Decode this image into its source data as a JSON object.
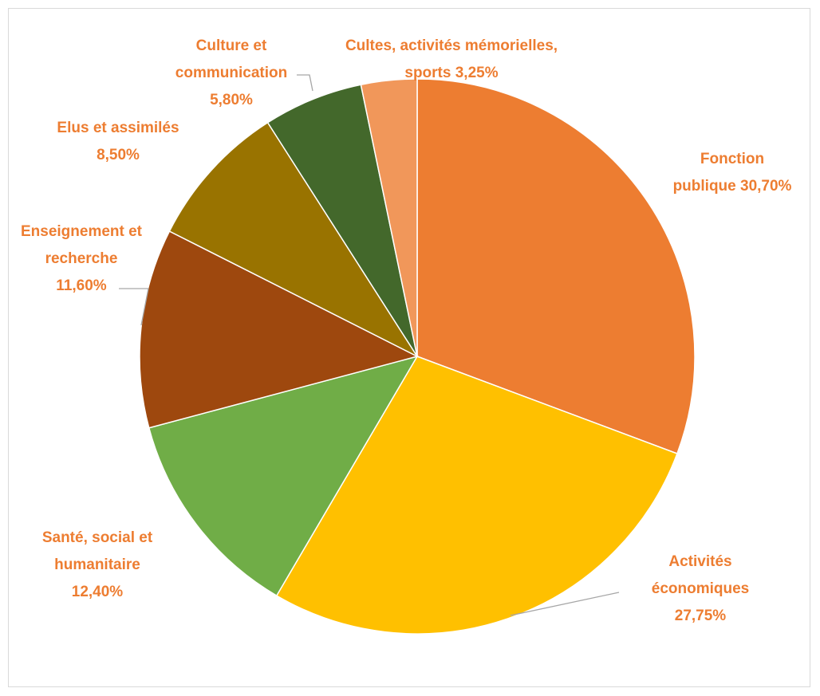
{
  "chart_data": {
    "type": "pie",
    "title": "",
    "slices": [
      {
        "name": "Fonction publique",
        "value": 30.7,
        "label_lines": [
          "Fonction",
          "publique 30,70%"
        ],
        "color": "#ED7D31"
      },
      {
        "name": "Activités économiques",
        "value": 27.75,
        "label_lines": [
          "Activités",
          "économiques",
          "27,75%"
        ],
        "color": "#FFC000"
      },
      {
        "name": "Santé, social et humanitaire",
        "value": 12.4,
        "label_lines": [
          "Santé, social et",
          "humanitaire",
          "12,40%"
        ],
        "color": "#70AD47"
      },
      {
        "name": "Enseignement et recherche",
        "value": 11.6,
        "label_lines": [
          "Enseignement et",
          "recherche",
          "11,60%"
        ],
        "color": "#9E480E"
      },
      {
        "name": "Elus et assimilés",
        "value": 8.5,
        "label_lines": [
          "Elus et assimilés",
          "8,50%"
        ],
        "color": "#997300"
      },
      {
        "name": "Culture et communication",
        "value": 5.8,
        "label_lines": [
          "Culture et",
          "communication",
          "5,80%"
        ],
        "color": "#43682B"
      },
      {
        "name": "Cultes, activités mémorielles, sports",
        "value": 3.25,
        "label_lines": [
          "Cultes, activités mémorielles,",
          "sports 3,25%"
        ],
        "color": "#F1975A"
      }
    ],
    "label_color": "#ED7D31",
    "leader_line_color": "#a6a6a6",
    "legend": "none"
  }
}
